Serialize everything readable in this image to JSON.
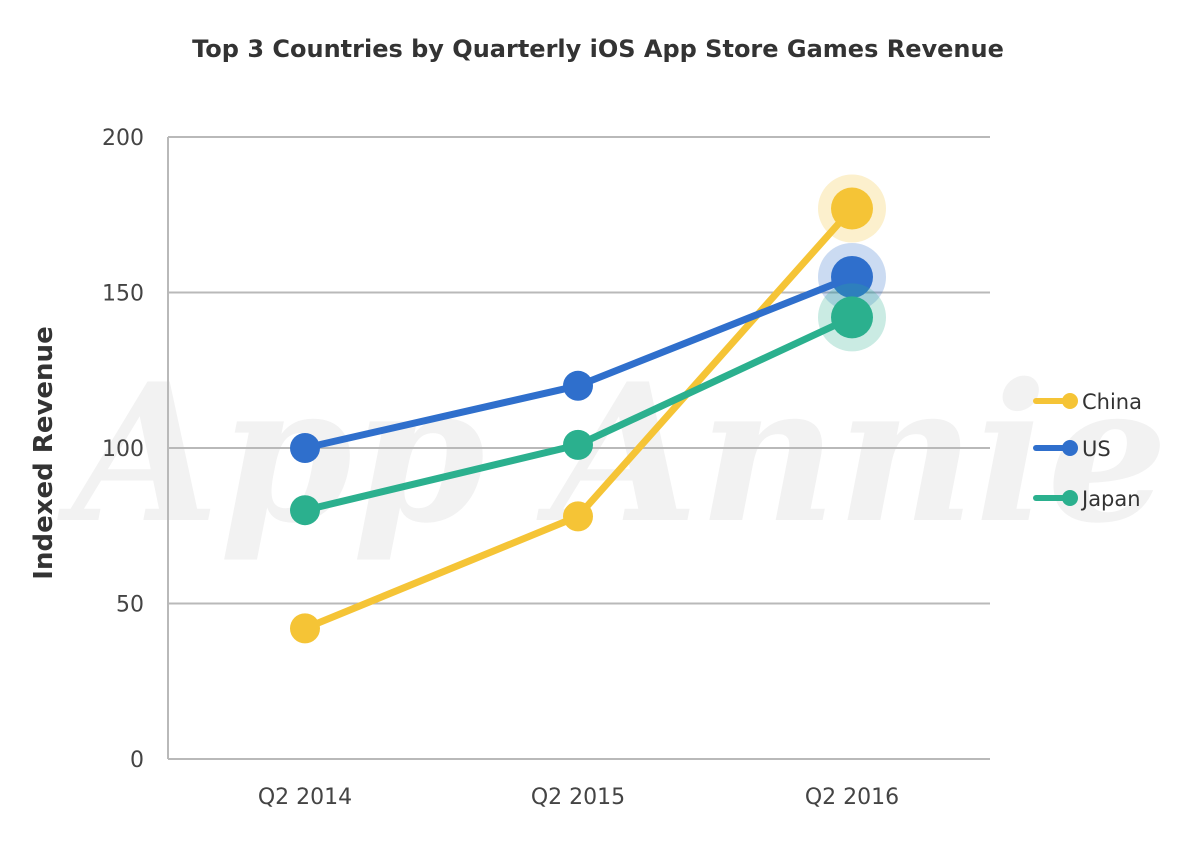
{
  "chart_data": {
    "type": "line",
    "title": "Top 3 Countries by Quarterly iOS App Store Games Revenue",
    "ylabel": "Indexed Revenue",
    "xlabel": "",
    "categories": [
      "Q2 2014",
      "Q2 2015",
      "Q2 2016"
    ],
    "ylim": [
      0,
      200
    ],
    "yticks": [
      0,
      50,
      100,
      150,
      200
    ],
    "grid": true,
    "legend_position": "right",
    "watermark": "App Annie",
    "series": [
      {
        "name": "China",
        "color": "#f5c436",
        "values": [
          42,
          78,
          177
        ]
      },
      {
        "name": "US",
        "color": "#2f6fcc",
        "values": [
          100,
          120,
          155
        ]
      },
      {
        "name": "Japan",
        "color": "#2bb08e",
        "values": [
          80,
          101,
          142
        ]
      }
    ]
  }
}
